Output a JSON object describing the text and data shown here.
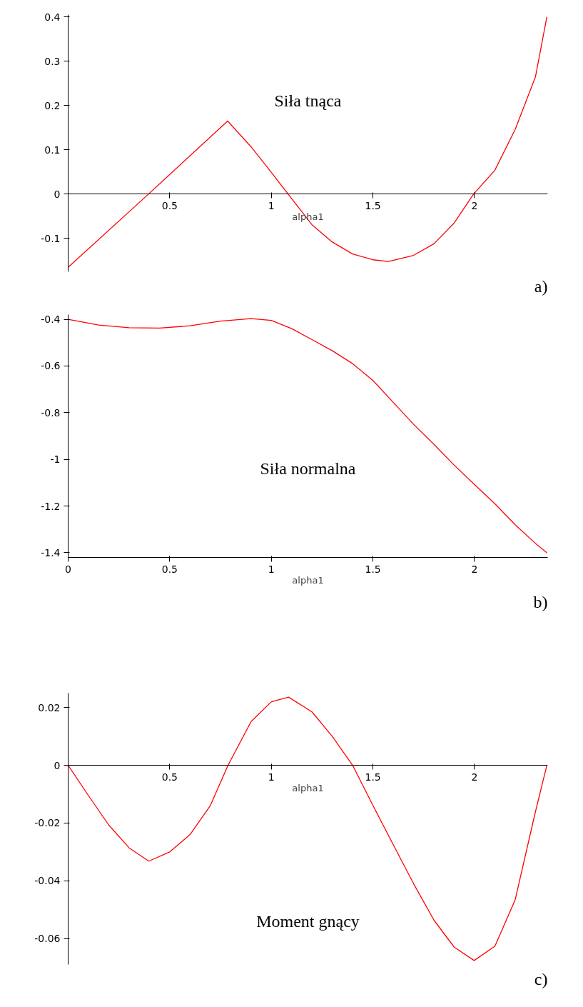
{
  "chart_data": [
    {
      "type": "line",
      "title": "Siła tnąca",
      "xlabel": "alpha1",
      "annotations": [
        "a)"
      ],
      "xlim": [
        0,
        2.36
      ],
      "ylim": [
        -0.175,
        0.405
      ],
      "xticks": [
        0.5,
        1,
        1.5,
        2
      ],
      "yticks": [
        -0.1,
        0,
        0.1,
        0.2,
        0.3,
        0.4
      ],
      "grid": false,
      "marker": "none",
      "line_style": "solid",
      "series": [
        {
          "color": "#ff0000",
          "x": [
            0,
            0.395,
            0.785,
            0.9,
            1.0,
            1.083,
            1.2,
            1.3,
            1.4,
            1.5,
            1.577,
            1.7,
            1.8,
            1.9,
            1.995,
            2.1,
            2.2,
            2.3,
            2.356
          ],
          "values": [
            -0.165,
            0,
            0.165,
            0.107,
            0.049,
            0,
            -0.069,
            -0.108,
            -0.135,
            -0.148,
            -0.152,
            -0.138,
            -0.112,
            -0.065,
            0,
            0.054,
            0.146,
            0.265,
            0.4
          ]
        }
      ]
    },
    {
      "type": "line",
      "title": "Siła normalna",
      "xlabel": "alpha1",
      "annotations": [
        "b)"
      ],
      "xlim": [
        0,
        2.36
      ],
      "ylim": [
        -1.42,
        -0.38
      ],
      "xticks": [
        0,
        0.5,
        1,
        1.5,
        2
      ],
      "yticks": [
        -1.4,
        -1.2,
        -1,
        -0.8,
        -0.6,
        -0.4
      ],
      "grid": false,
      "marker": "none",
      "line_style": "solid",
      "series": [
        {
          "color": "#ff0000",
          "x": [
            0,
            0.15,
            0.3,
            0.45,
            0.6,
            0.75,
            0.9,
            1.0,
            1.1,
            1.2,
            1.3,
            1.4,
            1.5,
            1.6,
            1.7,
            1.8,
            1.9,
            2.0,
            2.1,
            2.2,
            2.3,
            2.356
          ],
          "values": [
            -0.4,
            -0.425,
            -0.436,
            -0.438,
            -0.428,
            -0.408,
            -0.397,
            -0.405,
            -0.44,
            -0.487,
            -0.535,
            -0.59,
            -0.662,
            -0.756,
            -0.85,
            -0.935,
            -1.025,
            -1.108,
            -1.19,
            -1.28,
            -1.36,
            -1.4
          ]
        }
      ]
    },
    {
      "type": "line",
      "title": "Moment gnący",
      "xlabel": "alpha1",
      "annotations": [
        "c)"
      ],
      "xlim": [
        0,
        2.36
      ],
      "ylim": [
        -0.069,
        0.025
      ],
      "xticks": [
        0.5,
        1,
        1.5,
        2
      ],
      "yticks": [
        -0.06,
        -0.04,
        -0.02,
        0,
        0.02
      ],
      "grid": false,
      "marker": "none",
      "line_style": "solid",
      "series": [
        {
          "color": "#ff0000",
          "x": [
            0,
            0.1,
            0.2,
            0.3,
            0.397,
            0.5,
            0.6,
            0.7,
            0.787,
            0.9,
            1.0,
            1.085,
            1.2,
            1.3,
            1.4,
            1.5,
            1.6,
            1.7,
            1.8,
            1.9,
            1.998,
            2.1,
            2.2,
            2.3,
            2.356
          ],
          "values": [
            0,
            -0.0105,
            -0.0207,
            -0.0286,
            -0.0332,
            -0.03,
            -0.024,
            -0.0139,
            0,
            0.0151,
            0.022,
            0.0236,
            0.0185,
            0.01,
            0,
            -0.0139,
            -0.0275,
            -0.041,
            -0.0536,
            -0.063,
            -0.0676,
            -0.0627,
            -0.0466,
            -0.016,
            0
          ]
        }
      ]
    }
  ]
}
